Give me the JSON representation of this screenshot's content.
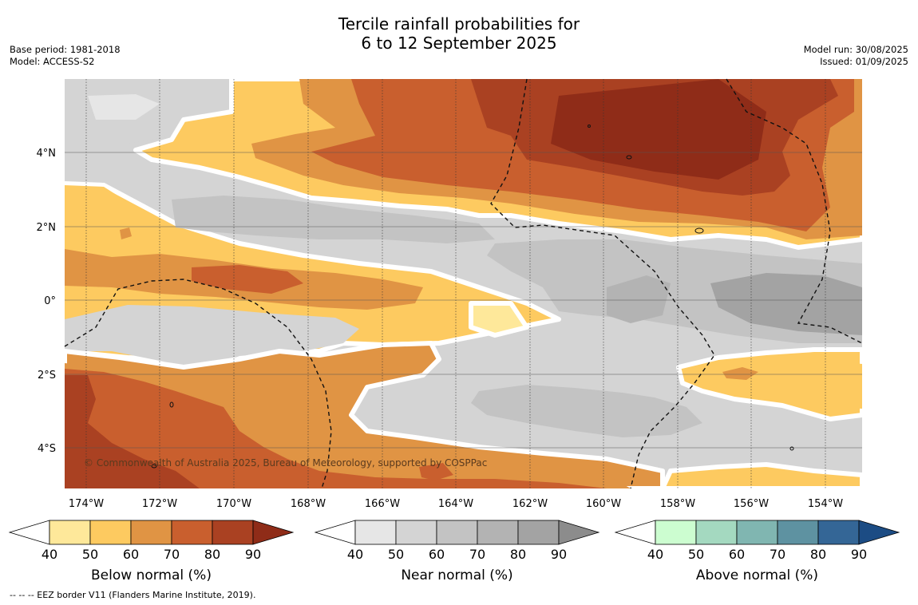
{
  "title": {
    "line1": "Tercile rainfall probabilities for",
    "line2": "6 to 12 September 2025"
  },
  "meta_left": {
    "base_period": "Base period: 1981-2018",
    "model": "Model: ACCESS-S2"
  },
  "meta_right": {
    "model_run": "Model run: 30/08/2025",
    "issued": "Issued: 01/09/2025"
  },
  "map": {
    "lon_labels": [
      "174°W",
      "172°W",
      "170°W",
      "168°W",
      "166°W",
      "164°W",
      "162°W",
      "160°W",
      "158°W",
      "156°W",
      "154°W"
    ],
    "lat_labels": [
      "4°N",
      "2°N",
      "0°",
      "2°S",
      "4°S"
    ],
    "copyright": "© Commonwealth of Australia 2025, Bureau of Meteorology, supported by COSPPac",
    "colors": {
      "below": [
        "#fee89a",
        "#fdca60",
        "#e09444",
        "#c95f2e",
        "#aa4122",
        "#8f2c18"
      ],
      "near": [
        "#e6e6e6",
        "#d4d4d4",
        "#c3c3c3",
        "#b3b3b3",
        "#a3a3a3",
        "#8c8c8c"
      ],
      "above": [
        "#ccfdd0",
        "#a4d9c0",
        "#80b6b1",
        "#5e92a1",
        "#346696",
        "#1c4c84"
      ]
    }
  },
  "colorbars": [
    {
      "label": "Below normal (%)",
      "ticks": [
        "40",
        "50",
        "60",
        "70",
        "80",
        "90"
      ]
    },
    {
      "label": "Near normal (%)",
      "ticks": [
        "40",
        "50",
        "60",
        "70",
        "80",
        "90"
      ]
    },
    {
      "label": "Above normal (%)",
      "ticks": [
        "40",
        "50",
        "60",
        "70",
        "80",
        "90"
      ]
    }
  ],
  "footnote": "--  --  -- EEZ border V11 (Flanders Marine Institute, 2019)."
}
